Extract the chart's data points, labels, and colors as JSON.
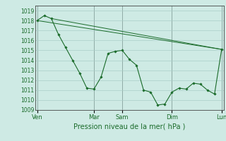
{
  "background_color": "#ceeae4",
  "grid_color": "#aacec8",
  "line_color": "#1a6b2a",
  "ylabel_text": "Pression niveau de la mer( hPa )",
  "x_ticks_labels": [
    "Ven",
    "Mar",
    "Sam",
    "Dim",
    "Lun"
  ],
  "x_ticks_pos": [
    0,
    8,
    12,
    19,
    26
  ],
  "ylim": [
    1009,
    1019.5
  ],
  "yticks": [
    1009,
    1010,
    1011,
    1012,
    1013,
    1014,
    1015,
    1016,
    1017,
    1018,
    1019
  ],
  "xlim": [
    -0.3,
    26.3
  ],
  "series1_x": [
    0,
    1,
    2,
    3,
    4,
    5,
    6,
    7,
    8,
    9,
    10,
    11,
    12,
    13,
    14,
    15,
    16,
    17,
    18,
    19,
    20,
    21,
    22,
    23,
    24,
    25,
    26
  ],
  "series1_y": [
    1018.0,
    1018.5,
    1018.2,
    1016.6,
    1015.3,
    1014.0,
    1012.7,
    1011.2,
    1011.1,
    1012.3,
    1014.7,
    1014.9,
    1015.0,
    1014.1,
    1013.5,
    1011.0,
    1010.8,
    1009.5,
    1009.6,
    1010.8,
    1011.2,
    1011.1,
    1011.7,
    1011.6,
    1011.0,
    1010.6,
    1015.1
  ],
  "series2_x": [
    0,
    26
  ],
  "series2_y": [
    1018.0,
    1015.1
  ],
  "series3_x": [
    2,
    26
  ],
  "series3_y": [
    1018.2,
    1015.1
  ],
  "vline_color": "#444444",
  "spine_color": "#444444",
  "tick_color": "#1a6b2a",
  "xlabel_fontsize": 7,
  "ytick_fontsize": 5.5,
  "xtick_fontsize": 6
}
